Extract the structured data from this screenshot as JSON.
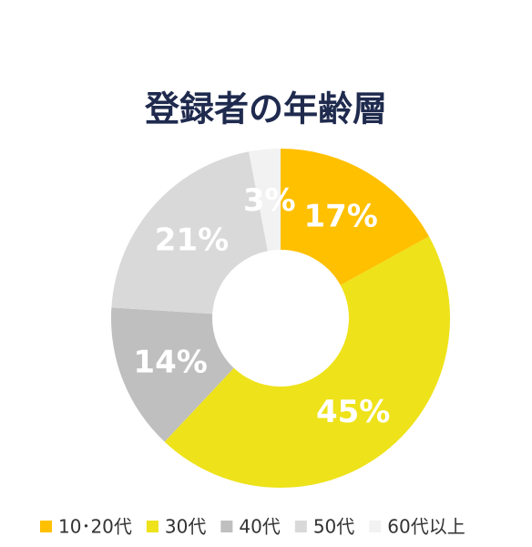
{
  "chart_data": {
    "type": "donut",
    "title": "登録者の年齢層",
    "categories": [
      "10･20代",
      "30代",
      "40代",
      "50代",
      "60代以上"
    ],
    "values": [
      17,
      45,
      14,
      21,
      3
    ],
    "value_labels": [
      "17%",
      "45%",
      "14%",
      "21%",
      "3%"
    ],
    "colors": [
      "#ffc000",
      "#eee21a",
      "#bfbfbf",
      "#d9d9d9",
      "#f2f2f2"
    ],
    "legend": "bottom"
  }
}
